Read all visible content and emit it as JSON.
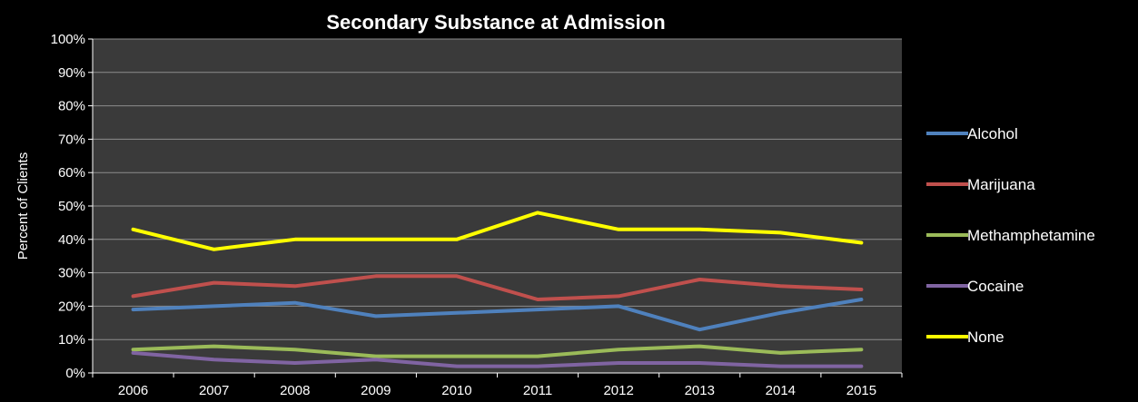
{
  "chart_data": {
    "type": "line",
    "title": "Secondary Substance at Admission",
    "xlabel": "",
    "ylabel": "Percent of Clients",
    "categories": [
      "2006",
      "2007",
      "2008",
      "2009",
      "2010",
      "2011",
      "2012",
      "2013",
      "2014",
      "2015"
    ],
    "y_ticks": [
      "0%",
      "10%",
      "20%",
      "30%",
      "40%",
      "50%",
      "60%",
      "70%",
      "80%",
      "90%",
      "100%"
    ],
    "ylim": [
      0,
      100
    ],
    "grid": true,
    "legend_position": "right",
    "series": [
      {
        "name": "Alcohol",
        "color": "#4f81bd",
        "values": [
          19,
          20,
          21,
          17,
          18,
          19,
          20,
          13,
          18,
          22
        ]
      },
      {
        "name": "Marijuana",
        "color": "#c0504d",
        "values": [
          23,
          27,
          26,
          29,
          29,
          22,
          23,
          28,
          26,
          25
        ]
      },
      {
        "name": "Methamphetamine",
        "color": "#9bbb59",
        "values": [
          7,
          8,
          7,
          5,
          5,
          5,
          7,
          8,
          6,
          7
        ]
      },
      {
        "name": "Cocaine",
        "color": "#8064a2",
        "values": [
          6,
          4,
          3,
          4,
          2,
          2,
          3,
          3,
          2,
          2
        ]
      },
      {
        "name": "None",
        "color": "#ffff00",
        "values": [
          43,
          37,
          40,
          40,
          40,
          48,
          43,
          43,
          42,
          39
        ]
      }
    ],
    "plot_background": "#3a3a3a",
    "gridline_color": "#8c8c8c"
  }
}
